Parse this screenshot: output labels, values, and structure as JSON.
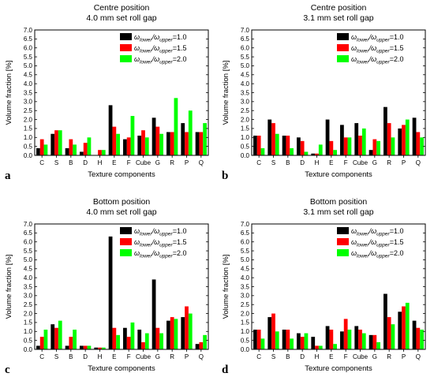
{
  "chart_data": [
    {
      "type": "bar",
      "panel_letter": "a",
      "title": "Centre position",
      "subtitle": "4.0 mm set roll gap",
      "xlabel": "Texture components",
      "ylabel": "Volume fraction [%]",
      "ylim": [
        0,
        7
      ],
      "ytick_step": 0.5,
      "categories": [
        "C",
        "S",
        "B",
        "D",
        "H",
        "E",
        "F",
        "Cube",
        "G",
        "R",
        "P",
        "Q"
      ],
      "series": [
        {
          "name": "ω_lower/ω_upper=1.0",
          "color": "#000000",
          "values": [
            0.4,
            1.2,
            0.4,
            0.2,
            0.0,
            2.8,
            0.9,
            1.1,
            2.1,
            1.3,
            1.8,
            1.3
          ]
        },
        {
          "name": "ω_lower/ω_upper=1.5",
          "color": "#ff0000",
          "values": [
            0.9,
            1.4,
            0.9,
            0.7,
            0.3,
            1.6,
            1.0,
            1.4,
            1.6,
            1.3,
            1.3,
            1.3
          ]
        },
        {
          "name": "ω_lower/ω_upper=2.0",
          "color": "#00ff00",
          "values": [
            0.6,
            1.4,
            0.6,
            1.0,
            0.3,
            1.2,
            2.2,
            1.0,
            1.2,
            3.2,
            2.5,
            1.8
          ]
        }
      ],
      "legend_position": "top-right"
    },
    {
      "type": "bar",
      "panel_letter": "b",
      "title": "Centre position",
      "subtitle": "3.1 mm set roll gap",
      "xlabel": "Texture components",
      "ylabel": "Volume fraction [%]",
      "ylim": [
        0,
        7
      ],
      "ytick_step": 0.5,
      "categories": [
        "C",
        "S",
        "B",
        "D",
        "H",
        "E",
        "F",
        "Cube",
        "G",
        "R",
        "P",
        "Q"
      ],
      "series": [
        {
          "name": "ω_lower/ω_upper=1.0",
          "color": "#000000",
          "values": [
            1.1,
            2.0,
            1.1,
            1.0,
            0.1,
            2.0,
            1.7,
            1.8,
            0.3,
            2.7,
            1.5,
            2.1
          ]
        },
        {
          "name": "ω_lower/ω_upper=1.5",
          "color": "#ff0000",
          "values": [
            1.1,
            1.8,
            1.1,
            0.8,
            0.1,
            0.8,
            1.0,
            1.1,
            0.9,
            1.8,
            1.7,
            1.3
          ]
        },
        {
          "name": "ω_lower/ω_upper=2.0",
          "color": "#00ff00",
          "values": [
            0.4,
            1.2,
            0.4,
            0.2,
            0.6,
            0.3,
            1.0,
            1.5,
            0.8,
            1.0,
            2.0,
            1.0
          ]
        }
      ],
      "legend_position": "top-right"
    },
    {
      "type": "bar",
      "panel_letter": "c",
      "title": "Bottom position",
      "subtitle": "4.0 mm set roll gap",
      "xlabel": "Texture components",
      "ylabel": "Volume fraction [%]",
      "ylim": [
        0,
        7
      ],
      "ytick_step": 0.5,
      "categories": [
        "C",
        "S",
        "B",
        "D",
        "H",
        "E",
        "F",
        "Cube",
        "G",
        "R",
        "P",
        "Q"
      ],
      "series": [
        {
          "name": "ω_lower/ω_upper=1.0",
          "color": "#000000",
          "values": [
            0.2,
            1.4,
            0.2,
            0.2,
            0.1,
            6.3,
            1.2,
            1.1,
            3.9,
            1.6,
            1.8,
            0.3
          ]
        },
        {
          "name": "ω_lower/ω_upper=1.5",
          "color": "#ff0000",
          "values": [
            0.7,
            1.2,
            0.7,
            0.2,
            0.1,
            1.2,
            0.7,
            0.4,
            1.2,
            1.8,
            2.4,
            0.4
          ]
        },
        {
          "name": "ω_lower/ω_upper=2.0",
          "color": "#00ff00",
          "values": [
            1.1,
            1.6,
            1.1,
            0.2,
            0.1,
            0.8,
            1.5,
            0.9,
            0.9,
            1.7,
            2.0,
            0.8
          ]
        }
      ],
      "legend_position": "top-right"
    },
    {
      "type": "bar",
      "panel_letter": "d",
      "title": "Bottom position",
      "subtitle": "3.1 mm set roll gap",
      "xlabel": "Texture components",
      "ylabel": "Volume fraction [%]",
      "ylim": [
        0,
        7
      ],
      "ytick_step": 0.5,
      "categories": [
        "C",
        "S",
        "B",
        "D",
        "H",
        "E",
        "F",
        "Cube",
        "G",
        "R",
        "P",
        "Q"
      ],
      "series": [
        {
          "name": "ω_lower/ω_upper=1.0",
          "color": "#000000",
          "values": [
            1.1,
            1.8,
            1.1,
            0.9,
            0.7,
            1.3,
            1.0,
            1.3,
            0.8,
            3.1,
            2.1,
            1.6
          ]
        },
        {
          "name": "ω_lower/ω_upper=1.5",
          "color": "#ff0000",
          "values": [
            1.1,
            2.0,
            1.1,
            0.7,
            0.2,
            1.1,
            1.7,
            1.1,
            0.8,
            1.8,
            2.4,
            1.2
          ]
        },
        {
          "name": "ω_lower/ω_upper=2.0",
          "color": "#00ff00",
          "values": [
            0.6,
            1.0,
            0.6,
            0.9,
            0.2,
            0.3,
            1.1,
            0.9,
            0.4,
            1.4,
            2.6,
            1.1
          ]
        }
      ],
      "legend_position": "top-right"
    }
  ]
}
